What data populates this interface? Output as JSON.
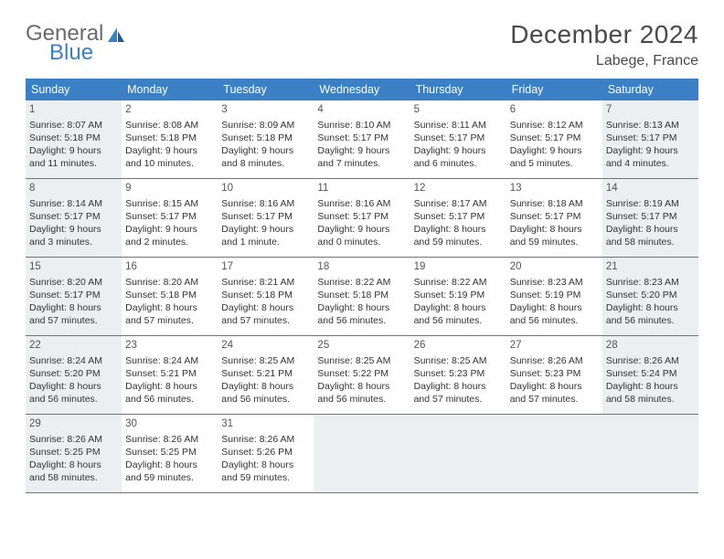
{
  "brand": {
    "top": "General",
    "bottom": "Blue"
  },
  "title": "December 2024",
  "location": "Labege, France",
  "colors": {
    "header_bg": "#3b7fc4",
    "header_text": "#ffffff",
    "shaded_bg": "#eceff1",
    "border": "#3b7fc4",
    "body_text": "#333333",
    "title_text": "#4a4a4a"
  },
  "weekdays": [
    "Sunday",
    "Monday",
    "Tuesday",
    "Wednesday",
    "Thursday",
    "Friday",
    "Saturday"
  ],
  "days": [
    {
      "n": "1",
      "shaded": true,
      "sr": "Sunrise: 8:07 AM",
      "ss": "Sunset: 5:18 PM",
      "d1": "Daylight: 9 hours",
      "d2": "and 11 minutes."
    },
    {
      "n": "2",
      "shaded": false,
      "sr": "Sunrise: 8:08 AM",
      "ss": "Sunset: 5:18 PM",
      "d1": "Daylight: 9 hours",
      "d2": "and 10 minutes."
    },
    {
      "n": "3",
      "shaded": false,
      "sr": "Sunrise: 8:09 AM",
      "ss": "Sunset: 5:18 PM",
      "d1": "Daylight: 9 hours",
      "d2": "and 8 minutes."
    },
    {
      "n": "4",
      "shaded": false,
      "sr": "Sunrise: 8:10 AM",
      "ss": "Sunset: 5:17 PM",
      "d1": "Daylight: 9 hours",
      "d2": "and 7 minutes."
    },
    {
      "n": "5",
      "shaded": false,
      "sr": "Sunrise: 8:11 AM",
      "ss": "Sunset: 5:17 PM",
      "d1": "Daylight: 9 hours",
      "d2": "and 6 minutes."
    },
    {
      "n": "6",
      "shaded": false,
      "sr": "Sunrise: 8:12 AM",
      "ss": "Sunset: 5:17 PM",
      "d1": "Daylight: 9 hours",
      "d2": "and 5 minutes."
    },
    {
      "n": "7",
      "shaded": true,
      "sr": "Sunrise: 8:13 AM",
      "ss": "Sunset: 5:17 PM",
      "d1": "Daylight: 9 hours",
      "d2": "and 4 minutes."
    },
    {
      "n": "8",
      "shaded": true,
      "sr": "Sunrise: 8:14 AM",
      "ss": "Sunset: 5:17 PM",
      "d1": "Daylight: 9 hours",
      "d2": "and 3 minutes."
    },
    {
      "n": "9",
      "shaded": false,
      "sr": "Sunrise: 8:15 AM",
      "ss": "Sunset: 5:17 PM",
      "d1": "Daylight: 9 hours",
      "d2": "and 2 minutes."
    },
    {
      "n": "10",
      "shaded": false,
      "sr": "Sunrise: 8:16 AM",
      "ss": "Sunset: 5:17 PM",
      "d1": "Daylight: 9 hours",
      "d2": "and 1 minute."
    },
    {
      "n": "11",
      "shaded": false,
      "sr": "Sunrise: 8:16 AM",
      "ss": "Sunset: 5:17 PM",
      "d1": "Daylight: 9 hours",
      "d2": "and 0 minutes."
    },
    {
      "n": "12",
      "shaded": false,
      "sr": "Sunrise: 8:17 AM",
      "ss": "Sunset: 5:17 PM",
      "d1": "Daylight: 8 hours",
      "d2": "and 59 minutes."
    },
    {
      "n": "13",
      "shaded": false,
      "sr": "Sunrise: 8:18 AM",
      "ss": "Sunset: 5:17 PM",
      "d1": "Daylight: 8 hours",
      "d2": "and 59 minutes."
    },
    {
      "n": "14",
      "shaded": true,
      "sr": "Sunrise: 8:19 AM",
      "ss": "Sunset: 5:17 PM",
      "d1": "Daylight: 8 hours",
      "d2": "and 58 minutes."
    },
    {
      "n": "15",
      "shaded": true,
      "sr": "Sunrise: 8:20 AM",
      "ss": "Sunset: 5:17 PM",
      "d1": "Daylight: 8 hours",
      "d2": "and 57 minutes."
    },
    {
      "n": "16",
      "shaded": false,
      "sr": "Sunrise: 8:20 AM",
      "ss": "Sunset: 5:18 PM",
      "d1": "Daylight: 8 hours",
      "d2": "and 57 minutes."
    },
    {
      "n": "17",
      "shaded": false,
      "sr": "Sunrise: 8:21 AM",
      "ss": "Sunset: 5:18 PM",
      "d1": "Daylight: 8 hours",
      "d2": "and 57 minutes."
    },
    {
      "n": "18",
      "shaded": false,
      "sr": "Sunrise: 8:22 AM",
      "ss": "Sunset: 5:18 PM",
      "d1": "Daylight: 8 hours",
      "d2": "and 56 minutes."
    },
    {
      "n": "19",
      "shaded": false,
      "sr": "Sunrise: 8:22 AM",
      "ss": "Sunset: 5:19 PM",
      "d1": "Daylight: 8 hours",
      "d2": "and 56 minutes."
    },
    {
      "n": "20",
      "shaded": false,
      "sr": "Sunrise: 8:23 AM",
      "ss": "Sunset: 5:19 PM",
      "d1": "Daylight: 8 hours",
      "d2": "and 56 minutes."
    },
    {
      "n": "21",
      "shaded": true,
      "sr": "Sunrise: 8:23 AM",
      "ss": "Sunset: 5:20 PM",
      "d1": "Daylight: 8 hours",
      "d2": "and 56 minutes."
    },
    {
      "n": "22",
      "shaded": true,
      "sr": "Sunrise: 8:24 AM",
      "ss": "Sunset: 5:20 PM",
      "d1": "Daylight: 8 hours",
      "d2": "and 56 minutes."
    },
    {
      "n": "23",
      "shaded": false,
      "sr": "Sunrise: 8:24 AM",
      "ss": "Sunset: 5:21 PM",
      "d1": "Daylight: 8 hours",
      "d2": "and 56 minutes."
    },
    {
      "n": "24",
      "shaded": false,
      "sr": "Sunrise: 8:25 AM",
      "ss": "Sunset: 5:21 PM",
      "d1": "Daylight: 8 hours",
      "d2": "and 56 minutes."
    },
    {
      "n": "25",
      "shaded": false,
      "sr": "Sunrise: 8:25 AM",
      "ss": "Sunset: 5:22 PM",
      "d1": "Daylight: 8 hours",
      "d2": "and 56 minutes."
    },
    {
      "n": "26",
      "shaded": false,
      "sr": "Sunrise: 8:25 AM",
      "ss": "Sunset: 5:23 PM",
      "d1": "Daylight: 8 hours",
      "d2": "and 57 minutes."
    },
    {
      "n": "27",
      "shaded": false,
      "sr": "Sunrise: 8:26 AM",
      "ss": "Sunset: 5:23 PM",
      "d1": "Daylight: 8 hours",
      "d2": "and 57 minutes."
    },
    {
      "n": "28",
      "shaded": true,
      "sr": "Sunrise: 8:26 AM",
      "ss": "Sunset: 5:24 PM",
      "d1": "Daylight: 8 hours",
      "d2": "and 58 minutes."
    },
    {
      "n": "29",
      "shaded": true,
      "sr": "Sunrise: 8:26 AM",
      "ss": "Sunset: 5:25 PM",
      "d1": "Daylight: 8 hours",
      "d2": "and 58 minutes."
    },
    {
      "n": "30",
      "shaded": false,
      "sr": "Sunrise: 8:26 AM",
      "ss": "Sunset: 5:25 PM",
      "d1": "Daylight: 8 hours",
      "d2": "and 59 minutes."
    },
    {
      "n": "31",
      "shaded": false,
      "sr": "Sunrise: 8:26 AM",
      "ss": "Sunset: 5:26 PM",
      "d1": "Daylight: 8 hours",
      "d2": "and 59 minutes."
    },
    {
      "n": "",
      "shaded": true,
      "sr": "",
      "ss": "",
      "d1": "",
      "d2": ""
    },
    {
      "n": "",
      "shaded": true,
      "sr": "",
      "ss": "",
      "d1": "",
      "d2": ""
    },
    {
      "n": "",
      "shaded": true,
      "sr": "",
      "ss": "",
      "d1": "",
      "d2": ""
    },
    {
      "n": "",
      "shaded": true,
      "sr": "",
      "ss": "",
      "d1": "",
      "d2": ""
    }
  ]
}
